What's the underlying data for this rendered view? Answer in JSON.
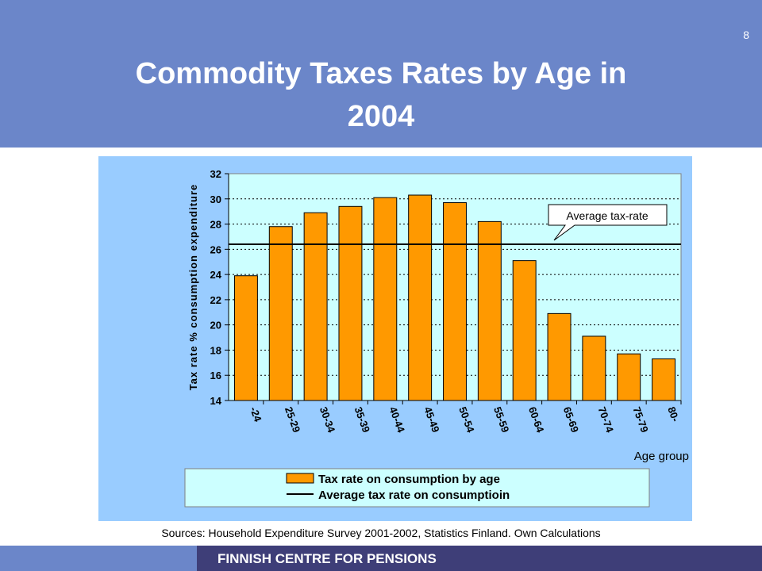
{
  "slide": {
    "number": "8",
    "title_line1": "Commodity Taxes Rates by Age in",
    "title_line2": "2004",
    "sources": "Sources: Household Expenditure Survey 2001-2002, Statistics Finland. Own Calculations",
    "footer": "FINNISH CENTRE FOR PENSIONS"
  },
  "colors": {
    "header": "#6b86c9",
    "footer": "#3e3e78",
    "chart_bg": "#99ccff",
    "plot_bg": "#ccffff",
    "bar": "#ff9900"
  },
  "chart_data": {
    "type": "bar",
    "ylabel": "Tax rate % consumption expenditure",
    "xlabel": "Age group",
    "categories": [
      "-24",
      "25-29",
      "30-34",
      "35-39",
      "40-44",
      "45-49",
      "50-54",
      "55-59",
      "60-64",
      "65-69",
      "70-74",
      "75-79",
      "80-"
    ],
    "series": [
      {
        "name": "Tax rate on consumption by age",
        "values": [
          23.9,
          27.8,
          28.9,
          29.4,
          30.1,
          30.3,
          29.7,
          28.2,
          25.1,
          20.9,
          19.1,
          17.7,
          17.3
        ]
      }
    ],
    "average": {
      "name": "Average tax rate on consumptioin",
      "value": 26.4
    },
    "annotation": "Average tax-rate",
    "ylim": [
      14,
      32
    ],
    "yticks": [
      14,
      16,
      18,
      20,
      22,
      24,
      26,
      28,
      30,
      32
    ],
    "grid": true,
    "legend_position": "bottom"
  }
}
